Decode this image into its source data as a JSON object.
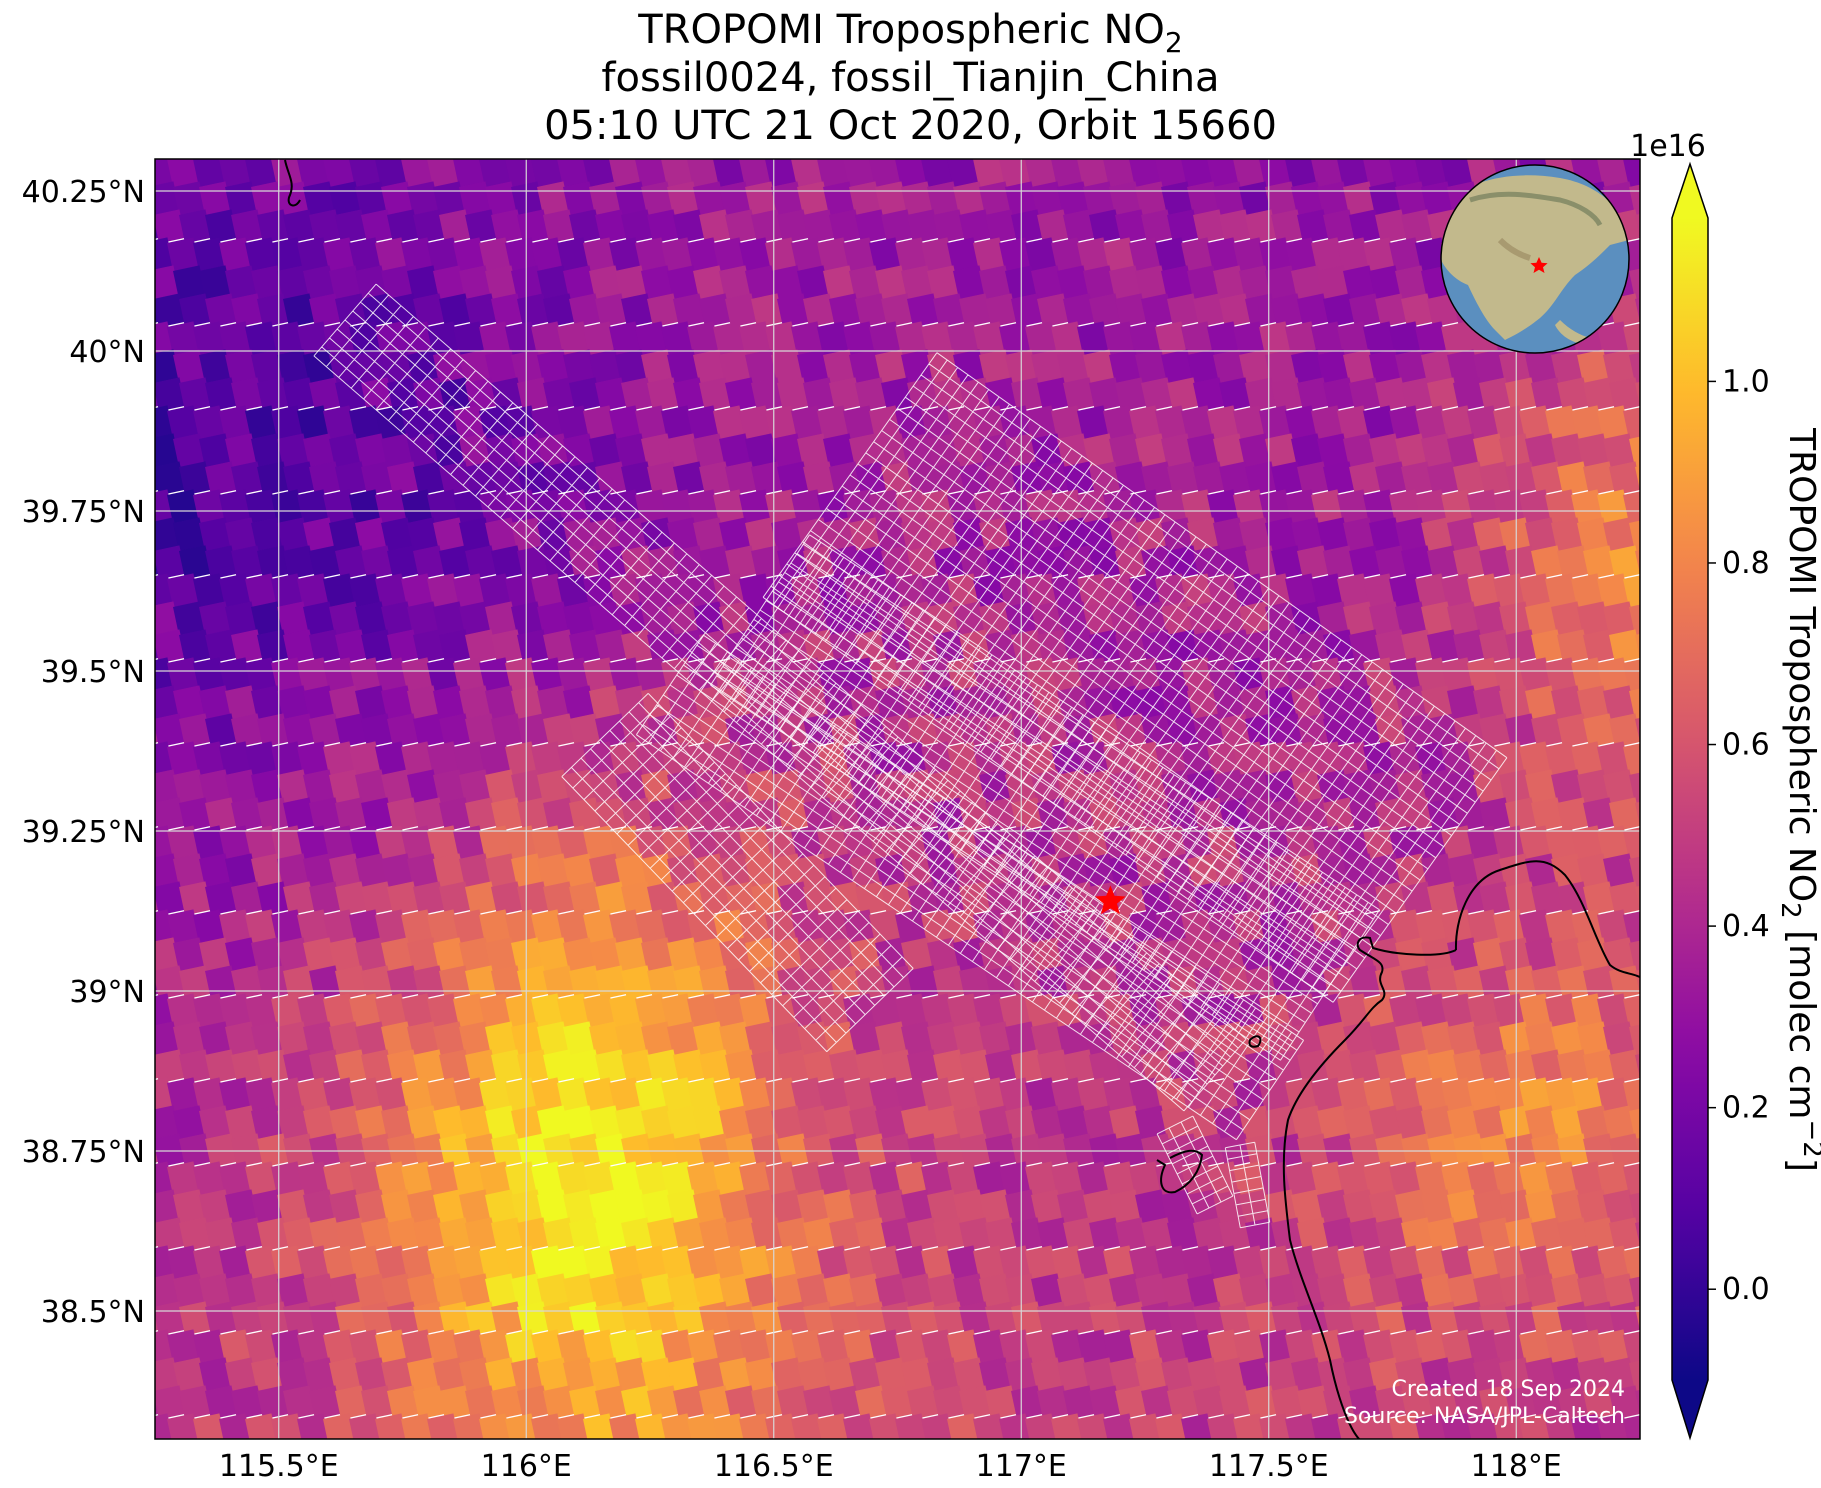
{
  "title": {
    "line1_main": "TROPOMI Tropospheric NO",
    "line1_sub": "2",
    "line2": "fossil0024, fossil_Tianjin_China",
    "line3": "05:10 UTC 21 Oct 2020, Orbit 15660"
  },
  "map": {
    "lon_range": [
      115.25,
      118.25
    ],
    "lat_range": [
      38.3,
      40.3
    ],
    "lon_ticks": [
      {
        "value": 115.5,
        "label": "115.5°E"
      },
      {
        "value": 116.0,
        "label": "116°E"
      },
      {
        "value": 116.5,
        "label": "116.5°E"
      },
      {
        "value": 117.0,
        "label": "117°E"
      },
      {
        "value": 117.5,
        "label": "117.5°E"
      },
      {
        "value": 118.0,
        "label": "118°E"
      }
    ],
    "lat_ticks": [
      {
        "value": 40.25,
        "label": "40.25°N"
      },
      {
        "value": 40.0,
        "label": "40°N"
      },
      {
        "value": 39.75,
        "label": "39.75°N"
      },
      {
        "value": 39.5,
        "label": "39.5°N"
      },
      {
        "value": 39.25,
        "label": "39.25°N"
      },
      {
        "value": 39.0,
        "label": "39°N"
      },
      {
        "value": 38.75,
        "label": "38.75°N"
      },
      {
        "value": 38.5,
        "label": "38.5°N"
      }
    ],
    "gridlines": true,
    "target": {
      "lon": 117.18,
      "lat": 39.14,
      "marker": "red-star"
    },
    "credit_line1": "Created 18 Sep 2024",
    "credit_line2": "Source: NASA/JPL-Caltech"
  },
  "colorbar": {
    "colormap": "plasma",
    "range": [
      -0.1,
      1.18
    ],
    "multiplier": "1e16",
    "ticks": [
      {
        "value": 0.0,
        "label": "0.0"
      },
      {
        "value": 0.2,
        "label": "0.2"
      },
      {
        "value": 0.4,
        "label": "0.4"
      },
      {
        "value": 0.6,
        "label": "0.6"
      },
      {
        "value": 0.8,
        "label": "0.8"
      },
      {
        "value": 1.0,
        "label": "1.0"
      }
    ],
    "label_main": "TROPOMI Tropospheric NO",
    "label_sub": "2",
    "label_units": " [molec cm",
    "label_sup": "−2",
    "label_end": "]",
    "extend": "both"
  },
  "colors": {
    "target_marker": "#ff0000",
    "footprint_outline": "#ffffff",
    "coastline": "#000000",
    "globe_ocean": "#5b8fbf",
    "globe_land": "#c2b98c"
  }
}
